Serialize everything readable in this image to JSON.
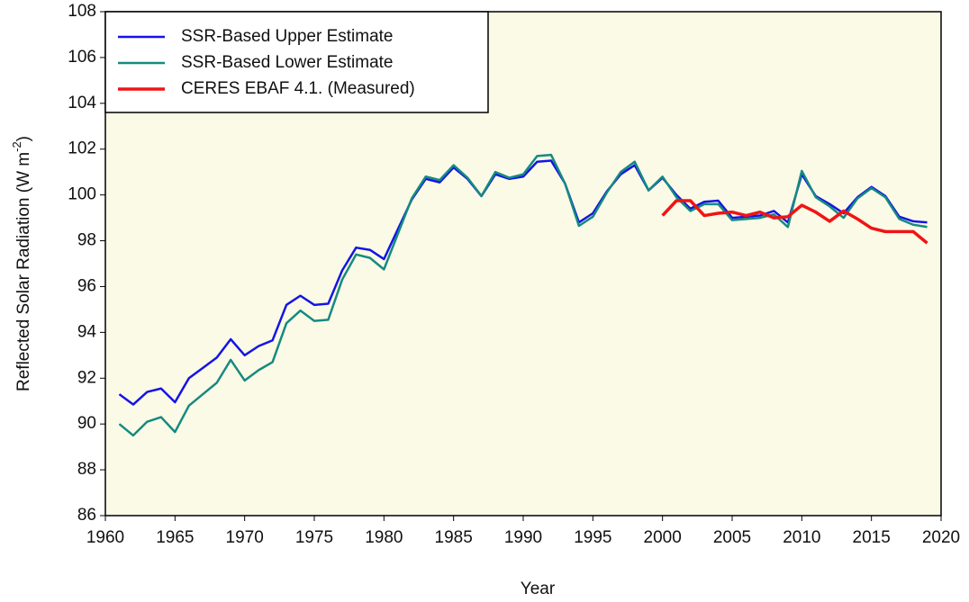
{
  "chart_data": {
    "type": "line",
    "ylabel": [
      "Reflected Solar Radiation (W m",
      "-2",
      ")"
    ],
    "xlabel": "Year",
    "xlim": [
      1960,
      2020
    ],
    "xticks": [
      1960,
      1965,
      1970,
      1975,
      1980,
      1985,
      1990,
      1995,
      2000,
      2005,
      2010,
      2015,
      2020
    ],
    "ylim": [
      86,
      108
    ],
    "yticks": [
      86,
      88,
      90,
      92,
      94,
      96,
      98,
      100,
      102,
      104,
      106,
      108
    ],
    "legend": "upper-left",
    "series": [
      {
        "name": "SSR-Based Upper Estimate",
        "color": "#1414e6",
        "x": [
          1961,
          1962,
          1963,
          1964,
          1965,
          1966,
          1967,
          1968,
          1969,
          1970,
          1971,
          1972,
          1973,
          1974,
          1975,
          1976,
          1977,
          1978,
          1979,
          1980,
          1981,
          1982,
          1983,
          1984,
          1985,
          1986,
          1987,
          1988,
          1989,
          1990,
          1991,
          1992,
          1993,
          1994,
          1995,
          1996,
          1997,
          1998,
          1999,
          2000,
          2001,
          2002,
          2003,
          2004,
          2005,
          2006,
          2007,
          2008,
          2009,
          2010,
          2011,
          2012,
          2013,
          2014,
          2015,
          2016,
          2017,
          2018,
          2019
        ],
        "values": [
          91.3,
          90.85,
          91.4,
          91.55,
          90.95,
          92.0,
          92.45,
          92.9,
          93.7,
          93.0,
          93.4,
          93.65,
          95.2,
          95.6,
          95.2,
          95.25,
          96.7,
          97.7,
          97.6,
          97.2,
          98.5,
          99.8,
          100.7,
          100.55,
          101.2,
          100.7,
          99.95,
          100.9,
          100.7,
          100.8,
          101.45,
          101.5,
          100.5,
          98.8,
          99.2,
          100.15,
          100.9,
          101.3,
          100.2,
          100.75,
          100.0,
          99.4,
          99.7,
          99.75,
          99.0,
          99.05,
          99.1,
          99.3,
          98.8,
          100.9,
          99.95,
          99.6,
          99.2,
          99.9,
          100.35,
          99.95,
          99.05,
          98.85,
          98.8
        ]
      },
      {
        "name": "SSR-Based Lower Estimate",
        "color": "#168a80",
        "x": [
          1961,
          1962,
          1963,
          1964,
          1965,
          1966,
          1967,
          1968,
          1969,
          1970,
          1971,
          1972,
          1973,
          1974,
          1975,
          1976,
          1977,
          1978,
          1979,
          1980,
          1981,
          1982,
          1983,
          1984,
          1985,
          1986,
          1987,
          1988,
          1989,
          1990,
          1991,
          1992,
          1993,
          1994,
          1995,
          1996,
          1997,
          1998,
          1999,
          2000,
          2001,
          2002,
          2003,
          2004,
          2005,
          2006,
          2007,
          2008,
          2009,
          2010,
          2011,
          2012,
          2013,
          2014,
          2015,
          2016,
          2017,
          2018,
          2019
        ],
        "values": [
          90.0,
          89.5,
          90.1,
          90.3,
          89.65,
          90.8,
          91.3,
          91.8,
          92.8,
          91.9,
          92.35,
          92.7,
          94.4,
          94.95,
          94.5,
          94.55,
          96.3,
          97.4,
          97.25,
          96.75,
          98.3,
          99.85,
          100.8,
          100.65,
          101.3,
          100.75,
          99.95,
          101.0,
          100.75,
          100.9,
          101.7,
          101.75,
          100.5,
          98.65,
          99.05,
          100.1,
          101.0,
          101.45,
          100.2,
          100.8,
          99.9,
          99.3,
          99.6,
          99.6,
          98.9,
          98.95,
          99.0,
          99.15,
          98.6,
          101.05,
          99.9,
          99.5,
          99.0,
          99.85,
          100.3,
          99.9,
          98.95,
          98.7,
          98.6
        ]
      },
      {
        "name": "CERES EBAF 4.1. (Measured)",
        "color": "#f01414",
        "x": [
          2000,
          2001,
          2002,
          2003,
          2004,
          2005,
          2006,
          2007,
          2008,
          2009,
          2010,
          2011,
          2012,
          2013,
          2014,
          2015,
          2016,
          2017,
          2018,
          2019
        ],
        "values": [
          99.1,
          99.75,
          99.75,
          99.1,
          99.2,
          99.25,
          99.1,
          99.25,
          99.0,
          99.05,
          99.55,
          99.25,
          98.85,
          99.3,
          98.95,
          98.55,
          98.4,
          98.4,
          98.4,
          97.9
        ]
      }
    ]
  }
}
